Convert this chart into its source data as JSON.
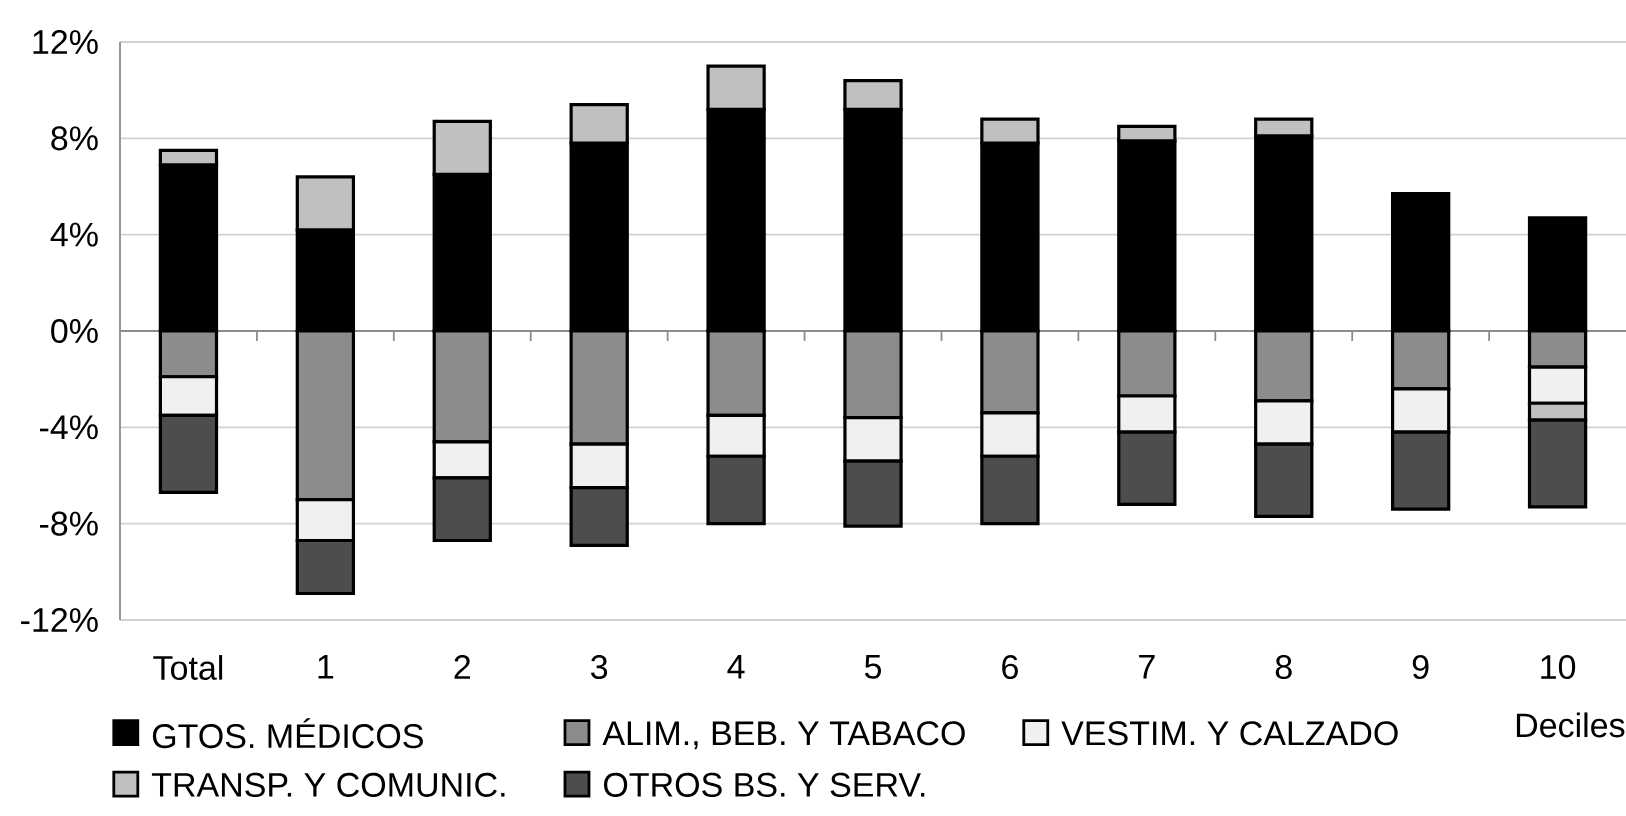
{
  "chart_data": {
    "type": "bar",
    "stacked": true,
    "xlabel": "Deciles",
    "categories": [
      "Total",
      "1",
      "2",
      "3",
      "4",
      "5",
      "6",
      "7",
      "8",
      "9",
      "10"
    ],
    "series": [
      {
        "name": "GTOS. MÉDICOS",
        "color": "#000000",
        "values": [
          6.9,
          4.2,
          6.5,
          7.8,
          9.2,
          9.2,
          7.8,
          7.9,
          8.1,
          5.7,
          4.7
        ]
      },
      {
        "name": "ALIM., BEB. Y TABACO",
        "color": "#8c8c8c",
        "values": [
          -1.9,
          -7.0,
          -4.6,
          -4.7,
          -3.5,
          -3.6,
          -3.4,
          -2.7,
          -2.9,
          -2.4,
          -1.5
        ]
      },
      {
        "name": "VESTIM. Y CALZADO",
        "color": "#f0f0f0",
        "values": [
          -1.6,
          -1.7,
          -1.5,
          -1.8,
          -1.7,
          -1.8,
          -1.8,
          -1.5,
          -1.8,
          -1.8,
          -1.5
        ]
      },
      {
        "name": "TRANSP. Y COMUNIC.",
        "color": "#c0c0c0",
        "values": [
          0.6,
          2.2,
          2.2,
          1.6,
          1.8,
          1.2,
          1.0,
          0.6,
          0.7,
          0,
          -0.7
        ]
      },
      {
        "name": "OTROS BS. Y SERV.",
        "color": "#4d4d4d",
        "values": [
          -3.2,
          -2.2,
          -2.6,
          -2.4,
          -2.8,
          -2.7,
          -2.8,
          -3.0,
          -3.0,
          -3.2,
          -3.6
        ]
      }
    ],
    "ylim": [
      -12,
      12
    ],
    "yticks": [
      {
        "value": -12,
        "label": "-12%"
      },
      {
        "value": -8,
        "label": "-8%"
      },
      {
        "value": -4,
        "label": "-4%"
      },
      {
        "value": 0,
        "label": "0%"
      },
      {
        "value": 4,
        "label": "4%"
      },
      {
        "value": 8,
        "label": "8%"
      },
      {
        "value": 12,
        "label": "12%"
      }
    ],
    "grid": "y",
    "legend": "bottom"
  }
}
